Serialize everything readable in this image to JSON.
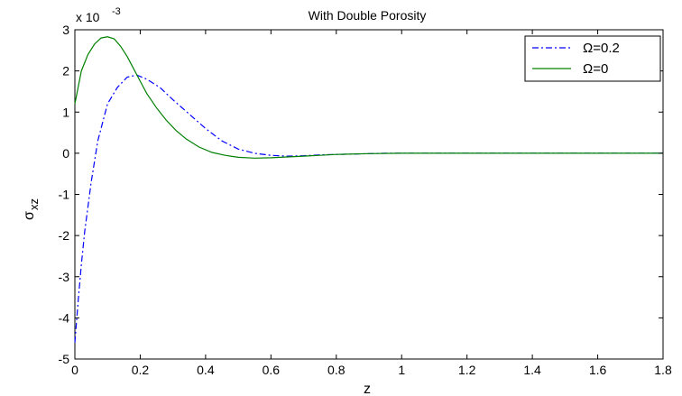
{
  "chart_data": {
    "type": "line",
    "title": "With Double Porosity",
    "xlabel": "z",
    "ylabel": "σxz",
    "ylabel_main": "σ",
    "ylabel_sub": "xz",
    "y_multiplier_base": "x 10",
    "y_multiplier_exp": "-3",
    "xlim": [
      0,
      1.8
    ],
    "ylim": [
      -5,
      3
    ],
    "x_ticks": [
      "0",
      "0.2",
      "0.4",
      "0.6",
      "0.8",
      "1",
      "1.2",
      "1.4",
      "1.6",
      "1.8"
    ],
    "y_ticks": [
      "-5",
      "-4",
      "-3",
      "-2",
      "-1",
      "0",
      "1",
      "2",
      "3"
    ],
    "grid": false,
    "legend_position": "top-right",
    "series": [
      {
        "name": "Ω=0.2",
        "style": "dash-dot",
        "color": "#0000ff",
        "x": [
          0,
          0.01,
          0.02,
          0.03,
          0.05,
          0.07,
          0.1,
          0.13,
          0.16,
          0.19,
          0.22,
          0.26,
          0.3,
          0.35,
          0.4,
          0.45,
          0.5,
          0.55,
          0.6,
          0.65,
          0.7,
          0.75,
          0.8,
          0.85,
          0.9,
          0.95,
          1.0,
          1.2,
          1.4,
          1.6,
          1.8
        ],
        "values": [
          -4.6,
          -3.6,
          -2.7,
          -1.9,
          -0.7,
          0.3,
          1.2,
          1.6,
          1.85,
          1.9,
          1.8,
          1.6,
          1.3,
          0.95,
          0.6,
          0.3,
          0.1,
          0.0,
          -0.05,
          -0.07,
          -0.06,
          -0.04,
          -0.03,
          -0.02,
          -0.01,
          0,
          0,
          0,
          0,
          0,
          0
        ]
      },
      {
        "name": "Ω=0",
        "style": "solid",
        "color": "#008000",
        "x": [
          0,
          0.01,
          0.02,
          0.04,
          0.06,
          0.08,
          0.1,
          0.12,
          0.14,
          0.16,
          0.18,
          0.2,
          0.22,
          0.25,
          0.28,
          0.31,
          0.34,
          0.38,
          0.42,
          0.46,
          0.5,
          0.55,
          0.6,
          0.65,
          0.7,
          0.75,
          0.8,
          0.9,
          1.0,
          1.2,
          1.4,
          1.6,
          1.8
        ],
        "values": [
          1.2,
          1.6,
          2.0,
          2.4,
          2.65,
          2.8,
          2.83,
          2.78,
          2.6,
          2.35,
          2.05,
          1.75,
          1.45,
          1.1,
          0.8,
          0.55,
          0.35,
          0.15,
          0.02,
          -0.05,
          -0.1,
          -0.12,
          -0.11,
          -0.09,
          -0.07,
          -0.05,
          -0.03,
          -0.01,
          0,
          0,
          0,
          0,
          0
        ]
      }
    ]
  }
}
